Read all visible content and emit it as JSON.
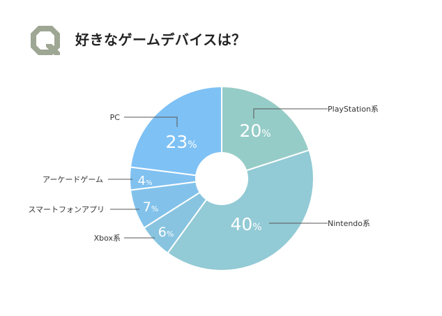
{
  "question": {
    "badge_letter": "Q",
    "title": "好きなゲームデバイスは？",
    "badge_color": "#9ea694"
  },
  "chart_data": {
    "type": "pie",
    "donut": true,
    "start_angle_deg": 0,
    "direction": "clockwise",
    "percent_sign": "%",
    "slices": [
      {
        "label": "PlayStation系",
        "value": 20,
        "color": "#96ccc7",
        "leader_side": "right"
      },
      {
        "label": "Nintendo系",
        "value": 40,
        "color": "#92cad5",
        "leader_side": "right"
      },
      {
        "label": "Xbox系",
        "value": 6,
        "color": "#88c4e0",
        "leader_side": "left"
      },
      {
        "label": "スマートフォンアプリ",
        "value": 7,
        "color": "#82c2ea",
        "leader_side": "left"
      },
      {
        "label": "アーケードゲーム",
        "value": 4,
        "color": "#80c1f0",
        "leader_side": "left"
      },
      {
        "label": "PC",
        "value": 23,
        "color": "#7ec1f5",
        "leader_side": "left"
      }
    ]
  }
}
